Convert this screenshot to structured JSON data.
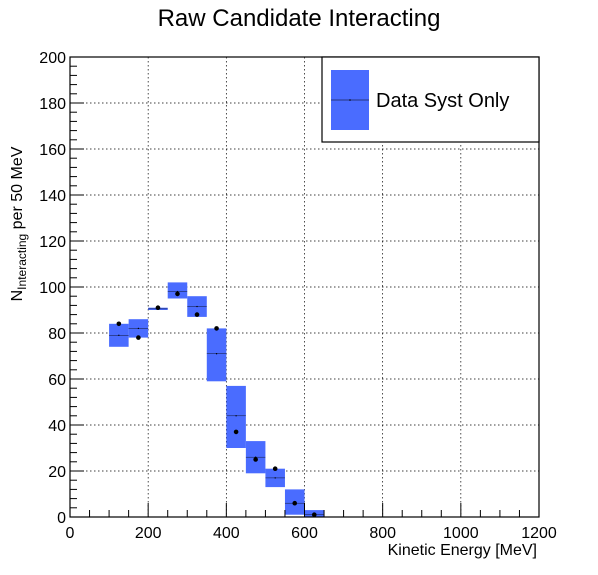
{
  "chart_data": {
    "type": "bar",
    "title": "Raw Candidate Interacting",
    "xlabel": "Kinetic Energy [MeV]",
    "ylabel": {
      "main": "N",
      "subscript": "Interacting",
      "suffix": " per 50 MeV"
    },
    "xlim": [
      0,
      1200
    ],
    "ylim": [
      0,
      200
    ],
    "x_ticks": [
      "0",
      "200",
      "400",
      "600",
      "800",
      "1000",
      "1200"
    ],
    "y_ticks": [
      "0",
      "20",
      "40",
      "60",
      "80",
      "100",
      "120",
      "140",
      "160",
      "180",
      "200"
    ],
    "grid": true,
    "legend": {
      "position": "top-right",
      "entries": [
        "Data Syst Only"
      ]
    },
    "colors": {
      "band": "#4a6cff",
      "marker": "#000000",
      "grid": "#000000"
    },
    "series": [
      {
        "name": "Data Syst Only",
        "bin_width": 50,
        "bins": [
          {
            "x": 125,
            "center": 79,
            "low": 74,
            "high": 84,
            "marker": 84
          },
          {
            "x": 175,
            "center": 82,
            "low": 78,
            "high": 86,
            "marker": 78
          },
          {
            "x": 225,
            "center": 90.5,
            "low": 90,
            "high": 91,
            "marker": 91
          },
          {
            "x": 275,
            "center": 98,
            "low": 95,
            "high": 102,
            "marker": 97
          },
          {
            "x": 325,
            "center": 91.5,
            "low": 87,
            "high": 96,
            "marker": 88
          },
          {
            "x": 375,
            "center": 71,
            "low": 59,
            "high": 82,
            "marker": 82
          },
          {
            "x": 425,
            "center": 44,
            "low": 30,
            "high": 57,
            "marker": 37
          },
          {
            "x": 475,
            "center": 26,
            "low": 19,
            "high": 33,
            "marker": 25
          },
          {
            "x": 525,
            "center": 17,
            "low": 13,
            "high": 21,
            "marker": 21
          },
          {
            "x": 575,
            "center": 6,
            "low": 1,
            "high": 12,
            "marker": 6
          },
          {
            "x": 625,
            "center": 1,
            "low": 0,
            "high": 3,
            "marker": 1
          }
        ]
      }
    ]
  }
}
